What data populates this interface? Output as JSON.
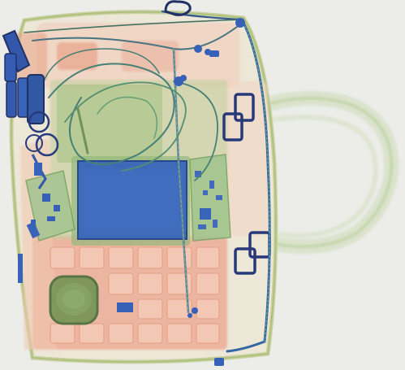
{
  "image": {
    "kind": "x-ray-scan",
    "subject": "bag",
    "colors": {
      "background": "#ebebe8",
      "organic_orange": "#e9a58c",
      "organic_light": "#f2cdbb",
      "inorganic_green": "#a9c98a",
      "dense_green": "#6c9a5a",
      "metal_blue": "#2e58b8",
      "dark_metal": "#1b2f6e"
    }
  }
}
